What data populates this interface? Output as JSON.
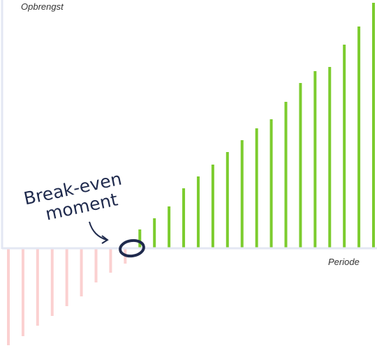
{
  "chart_data": {
    "type": "bar",
    "y_label": "Opbrengst",
    "x_label": "Periode",
    "annotation": [
      "Break-even",
      "moment"
    ],
    "categories": [
      null,
      null,
      null,
      null,
      null,
      null,
      null,
      null,
      null,
      null,
      null,
      null,
      null,
      null,
      null,
      null,
      null,
      null,
      null,
      null,
      null,
      null,
      null,
      null,
      null,
      null
    ],
    "values": [
      -139,
      -126,
      -111,
      -97,
      -83,
      -69,
      -49,
      -35,
      -22,
      27,
      43,
      60,
      86,
      103,
      120,
      138,
      155,
      172,
      185,
      210,
      237,
      254,
      260,
      292,
      318,
      352
    ],
    "color": "#7ccc2e",
    "negative_color": "#fbd0d0",
    "ylim": [
      -142,
      356
    ]
  }
}
